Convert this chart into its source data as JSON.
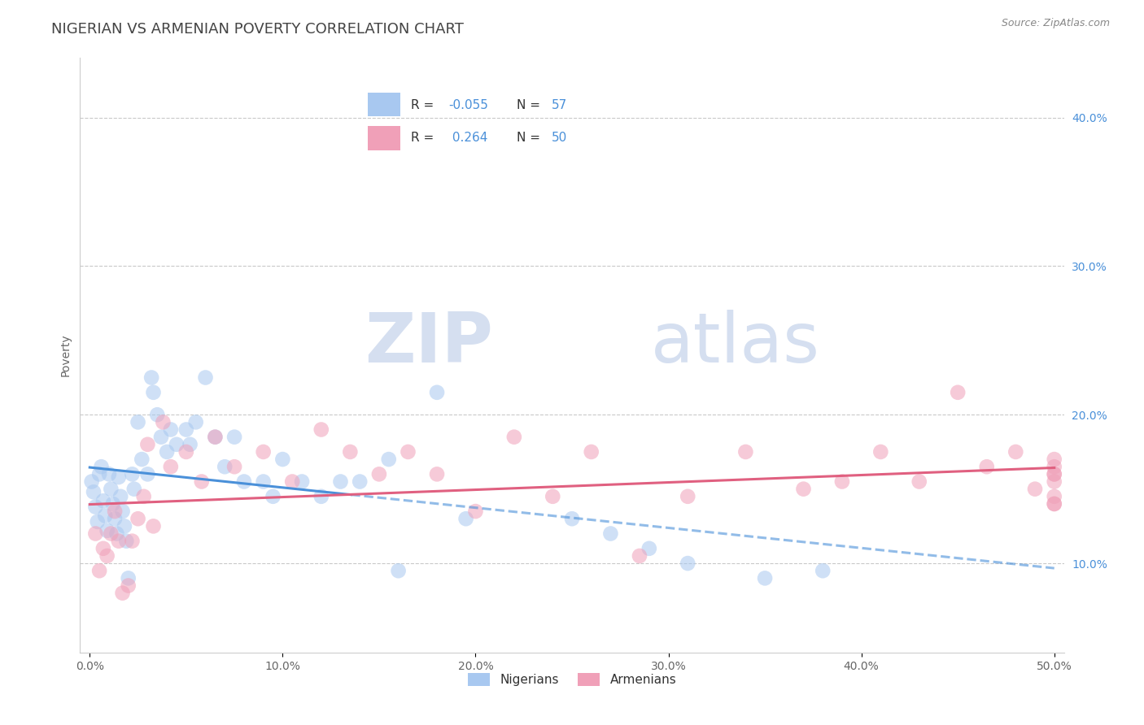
{
  "title": "NIGERIAN VS ARMENIAN POVERTY CORRELATION CHART",
  "source": "Source: ZipAtlas.com",
  "ylabel": "Poverty",
  "xlim": [
    -0.005,
    0.505
  ],
  "ylim": [
    0.04,
    0.44
  ],
  "xtick_vals": [
    0.0,
    0.1,
    0.2,
    0.3,
    0.4,
    0.5
  ],
  "ytick_vals": [
    0.1,
    0.2,
    0.3,
    0.4
  ],
  "blue_color": "#A8C8F0",
  "pink_color": "#F0A0B8",
  "blue_line_color": "#4A90D9",
  "pink_line_color": "#E06080",
  "legend_text_color": "#4A90D9",
  "R_blue": -0.055,
  "N_blue": 57,
  "R_pink": 0.264,
  "N_pink": 50,
  "legend_label_blue": "Nigerians",
  "legend_label_pink": "Armenians",
  "background_color": "#FFFFFF",
  "grid_color": "#BBBBBB",
  "watermark_zip": "ZIP",
  "watermark_atlas": "atlas",
  "watermark_color": "#D5DFF0",
  "title_fontsize": 13,
  "axis_label_fontsize": 10,
  "tick_fontsize": 10,
  "dot_size": 180,
  "dot_alpha": 0.55,
  "line_width": 2.2,
  "blue_x": [
    0.001,
    0.002,
    0.003,
    0.004,
    0.005,
    0.006,
    0.007,
    0.008,
    0.009,
    0.01,
    0.011,
    0.012,
    0.013,
    0.014,
    0.015,
    0.016,
    0.017,
    0.018,
    0.019,
    0.02,
    0.022,
    0.023,
    0.025,
    0.027,
    0.03,
    0.032,
    0.033,
    0.035,
    0.037,
    0.04,
    0.042,
    0.045,
    0.05,
    0.052,
    0.055,
    0.06,
    0.065,
    0.07,
    0.075,
    0.08,
    0.09,
    0.095,
    0.1,
    0.11,
    0.12,
    0.13,
    0.14,
    0.155,
    0.16,
    0.18,
    0.195,
    0.25,
    0.27,
    0.29,
    0.31,
    0.35,
    0.38
  ],
  "blue_y": [
    0.155,
    0.148,
    0.138,
    0.128,
    0.16,
    0.165,
    0.142,
    0.132,
    0.122,
    0.16,
    0.15,
    0.14,
    0.13,
    0.12,
    0.158,
    0.145,
    0.135,
    0.125,
    0.115,
    0.09,
    0.16,
    0.15,
    0.195,
    0.17,
    0.16,
    0.225,
    0.215,
    0.2,
    0.185,
    0.175,
    0.19,
    0.18,
    0.19,
    0.18,
    0.195,
    0.225,
    0.185,
    0.165,
    0.185,
    0.155,
    0.155,
    0.145,
    0.17,
    0.155,
    0.145,
    0.155,
    0.155,
    0.17,
    0.095,
    0.215,
    0.13,
    0.13,
    0.12,
    0.11,
    0.1,
    0.09,
    0.095
  ],
  "pink_x": [
    0.003,
    0.005,
    0.007,
    0.009,
    0.011,
    0.013,
    0.015,
    0.017,
    0.02,
    0.022,
    0.025,
    0.028,
    0.03,
    0.033,
    0.038,
    0.042,
    0.05,
    0.058,
    0.065,
    0.075,
    0.09,
    0.105,
    0.12,
    0.135,
    0.15,
    0.165,
    0.18,
    0.2,
    0.22,
    0.24,
    0.26,
    0.285,
    0.31,
    0.34,
    0.37,
    0.39,
    0.41,
    0.43,
    0.45,
    0.465,
    0.48,
    0.49,
    0.5,
    0.51,
    0.52,
    0.53,
    0.54,
    0.545,
    0.55,
    0.555
  ],
  "pink_y": [
    0.12,
    0.095,
    0.11,
    0.105,
    0.12,
    0.135,
    0.115,
    0.08,
    0.085,
    0.115,
    0.13,
    0.145,
    0.18,
    0.125,
    0.195,
    0.165,
    0.175,
    0.155,
    0.185,
    0.165,
    0.175,
    0.155,
    0.19,
    0.175,
    0.16,
    0.175,
    0.16,
    0.135,
    0.185,
    0.145,
    0.175,
    0.105,
    0.145,
    0.175,
    0.15,
    0.155,
    0.175,
    0.155,
    0.215,
    0.165,
    0.175,
    0.15,
    0.14,
    0.16,
    0.17,
    0.16,
    0.155,
    0.145,
    0.165,
    0.14
  ]
}
